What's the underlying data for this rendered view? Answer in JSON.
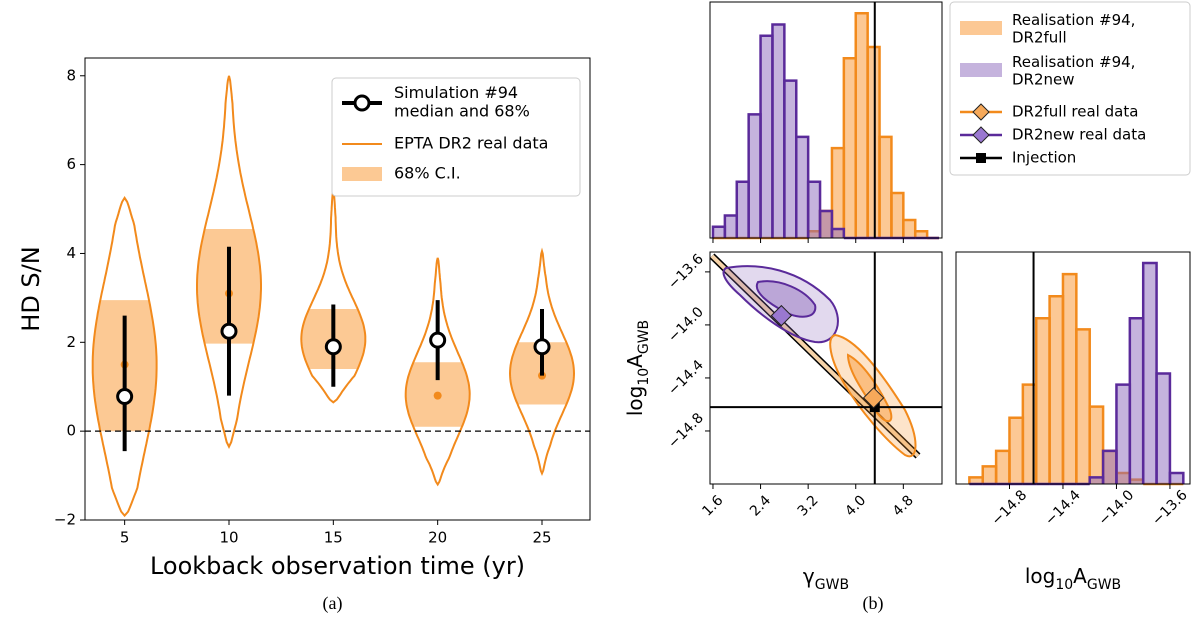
{
  "chart_data": [
    {
      "type": "violin",
      "label": "(a)",
      "xlabel": "Lookback observation time (yr)",
      "ylabel": "HD S/N",
      "x": [
        5,
        10,
        15,
        20,
        25
      ],
      "xlim": [
        3.1,
        27.3
      ],
      "xticks": [
        5,
        10,
        15,
        20,
        25
      ],
      "ylim": [
        -2,
        8.4
      ],
      "yticks": [
        {
          "value": -2,
          "label": "−2"
        },
        0,
        2,
        4,
        6,
        8
      ],
      "reference_line": 0,
      "legend_corner": "upper right",
      "series": [
        {
          "name": "Simulation #94\nmedian and 68%",
          "color": "#000000",
          "values": [
            0.78,
            2.25,
            1.9,
            2.05,
            1.9
          ],
          "low": [
            -0.45,
            0.8,
            1.0,
            1.15,
            1.25
          ],
          "high": [
            2.6,
            4.15,
            2.85,
            2.95,
            2.75
          ]
        },
        {
          "name": "EPTA DR2 real data",
          "color": "#f28a1c",
          "values": [
            1.5,
            3.1,
            1.9,
            0.8,
            1.25
          ],
          "min": [
            -1.9,
            -0.35,
            0.65,
            -1.2,
            -0.95
          ],
          "max": [
            5.25,
            8.0,
            5.4,
            3.9,
            4.05
          ]
        },
        {
          "name": "68% C.I.",
          "color": "#fcc994",
          "low": [
            0,
            1.97,
            1.4,
            0.1,
            0.6
          ],
          "high": [
            2.95,
            4.55,
            2.75,
            1.55,
            2.0
          ]
        }
      ]
    },
    {
      "type": "corner",
      "label": "(b)",
      "gamma": {
        "lim": [
          1.55,
          5.45
        ],
        "ticks": [
          1.6,
          2.4,
          3.2,
          {
            "value": 4,
            "label": "4.0"
          },
          4.8
        ],
        "label": [
          {
            "text": "γ"
          },
          {
            "text": "GWB",
            "sub": true
          }
        ]
      },
      "logA": {
        "lim": [
          -15.2,
          -13.45
        ],
        "ticks": [
          {
            "value": -14.8,
            "label": "−14.8"
          },
          {
            "value": -14.4,
            "label": "−14.4"
          },
          {
            "value": -14,
            "label": "−14.0"
          },
          {
            "value": -13.6,
            "label": "−13.6"
          }
        ],
        "label": [
          {
            "text": "log"
          },
          {
            "text": "10",
            "sub": true
          },
          {
            "text": "A"
          },
          {
            "text": "GWB",
            "sub": true
          }
        ]
      },
      "hist_ylim": [
        0,
        105
      ],
      "series": [
        {
          "name": "Realisation #94,\nDR2full",
          "color": "#f9922a",
          "edgecolor": "#f28a1c",
          "gamma_bins": [
            1.6,
            1.8,
            2.0,
            2.2,
            2.4,
            2.6,
            2.8,
            3.0,
            3.2,
            3.4,
            3.6,
            3.8,
            4.0,
            4.2,
            4.4,
            4.6,
            4.8,
            5.0,
            5.2,
            5.4
          ],
          "gamma_counts": [
            0,
            0,
            0,
            0,
            0,
            0,
            0,
            0,
            3,
            12,
            40,
            80,
            100,
            85,
            45,
            20,
            8,
            3,
            0
          ],
          "logA_bins": [
            -15.1,
            -15.0,
            -14.9,
            -14.8,
            -14.7,
            -14.6,
            -14.5,
            -14.4,
            -14.3,
            -14.2,
            -14.1,
            -14.0,
            -13.9,
            -13.8,
            -13.7,
            -13.6,
            -13.5
          ],
          "logA_counts": [
            3,
            8,
            15,
            30,
            45,
            75,
            85,
            95,
            70,
            35,
            15,
            5,
            2,
            0,
            0,
            0
          ]
        },
        {
          "name": "Realisation #94,\nDR2new",
          "color": "#8b68bb",
          "edgecolor": "#5a2a9a",
          "gamma_bins": [
            1.6,
            1.8,
            2.0,
            2.2,
            2.4,
            2.6,
            2.8,
            3.0,
            3.2,
            3.4,
            3.6,
            3.8,
            4.0,
            4.2,
            4.4,
            4.6,
            4.8,
            5.0,
            5.2,
            5.4
          ],
          "gamma_counts": [
            5,
            10,
            25,
            55,
            90,
            95,
            70,
            45,
            25,
            12,
            4,
            0,
            0,
            0,
            0,
            0,
            0,
            0,
            0
          ],
          "logA_bins": [
            -15.1,
            -15.0,
            -14.9,
            -14.8,
            -14.7,
            -14.6,
            -14.5,
            -14.4,
            -14.3,
            -14.2,
            -14.1,
            -14.0,
            -13.9,
            -13.8,
            -13.7,
            -13.6,
            -13.5
          ],
          "logA_counts": [
            0,
            0,
            0,
            0,
            0,
            0,
            0,
            0,
            0,
            3,
            15,
            45,
            75,
            100,
            50,
            5
          ]
        }
      ],
      "real_data": [
        {
          "name": "DR2full real data",
          "color": "#f6a95a",
          "edgecolor": "#f28a1c",
          "gamma": 4.3,
          "logA": -14.55
        },
        {
          "name": "DR2new real data",
          "color": "#9a78d0",
          "edgecolor": "#5a2a9a",
          "gamma": 2.75,
          "logA": -13.93
        }
      ],
      "injection": {
        "name": "Injection",
        "color": "#000000",
        "gamma": 4.32,
        "logA": -14.62
      }
    }
  ]
}
